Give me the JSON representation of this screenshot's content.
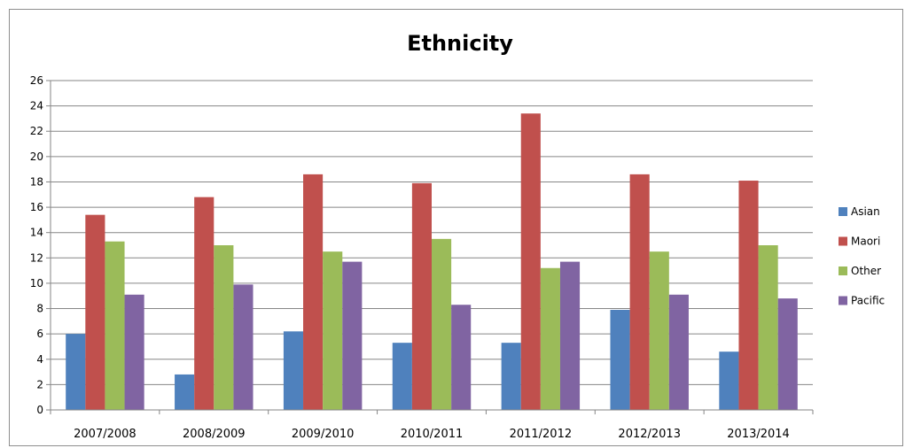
{
  "chart_data": {
    "type": "bar",
    "title": "Ethnicity",
    "xlabel": "",
    "ylabel": "",
    "categories": [
      "2007/2008",
      "2008/2009",
      "2009/2010",
      "2010/2011",
      "2011/2012",
      "2012/2013",
      "2013/2014"
    ],
    "series": [
      {
        "name": "Asian",
        "color": "#4F81BD",
        "values": [
          6.0,
          2.8,
          6.2,
          5.3,
          5.3,
          7.9,
          4.6
        ]
      },
      {
        "name": "Maori",
        "color": "#C0504D",
        "values": [
          15.4,
          16.8,
          18.6,
          17.9,
          23.4,
          18.6,
          18.1
        ]
      },
      {
        "name": "Other",
        "color": "#9BBB59",
        "values": [
          13.3,
          13.0,
          12.5,
          13.5,
          11.2,
          12.5,
          13.0
        ]
      },
      {
        "name": "Pacific",
        "color": "#8064A2",
        "values": [
          9.1,
          9.9,
          11.7,
          8.3,
          11.7,
          9.1,
          8.8
        ]
      }
    ],
    "ylim": [
      0,
      26
    ],
    "yticks": [
      0,
      2,
      4,
      6,
      8,
      10,
      12,
      14,
      16,
      18,
      20,
      22,
      24,
      26
    ],
    "grid": true,
    "legend": "right"
  }
}
